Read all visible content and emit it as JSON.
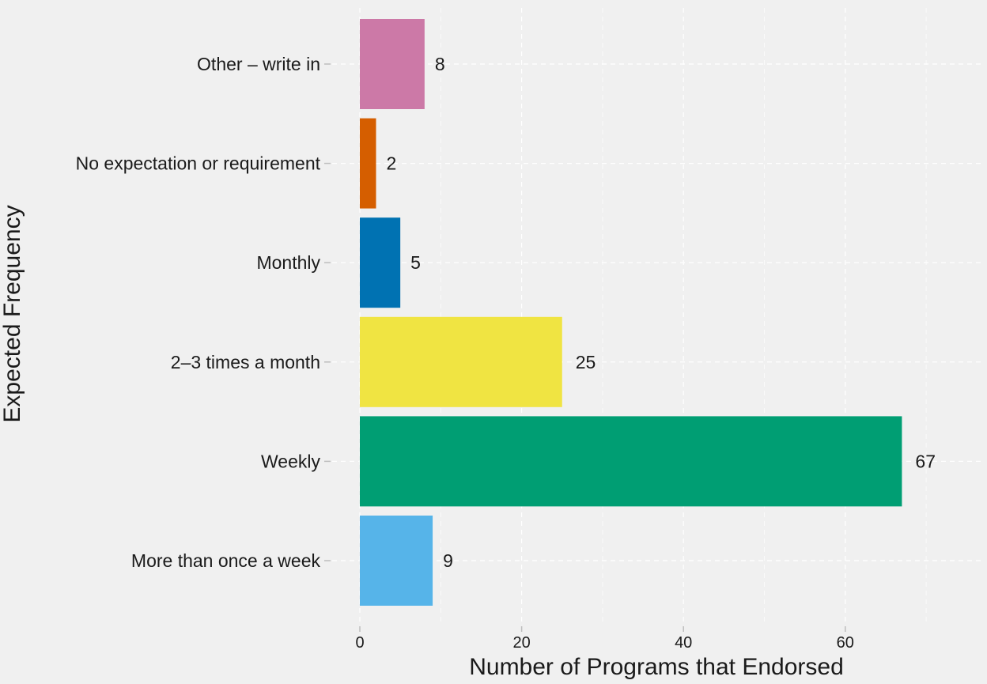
{
  "chart_data": {
    "type": "bar",
    "orientation": "horizontal",
    "title": "",
    "xlabel": "Number of Programs that Endorsed",
    "ylabel": "Expected Frequency",
    "xlim": [
      0,
      72
    ],
    "xticks": [
      "0",
      "20",
      "40",
      "60"
    ],
    "grid": true,
    "legend": "none",
    "categories": [
      "More than once a week",
      "Weekly",
      "2–3 times a month",
      "Monthly",
      "No expectation or requirement",
      "Other – write in"
    ],
    "values": [
      9,
      67,
      25,
      5,
      2,
      8
    ],
    "value_labels": [
      "9",
      "67",
      "25",
      "5",
      "2",
      "8"
    ],
    "colors": [
      "#56b4e9",
      "#009e73",
      "#f0e442",
      "#0072b2",
      "#d55e00",
      "#cc79a7"
    ]
  }
}
